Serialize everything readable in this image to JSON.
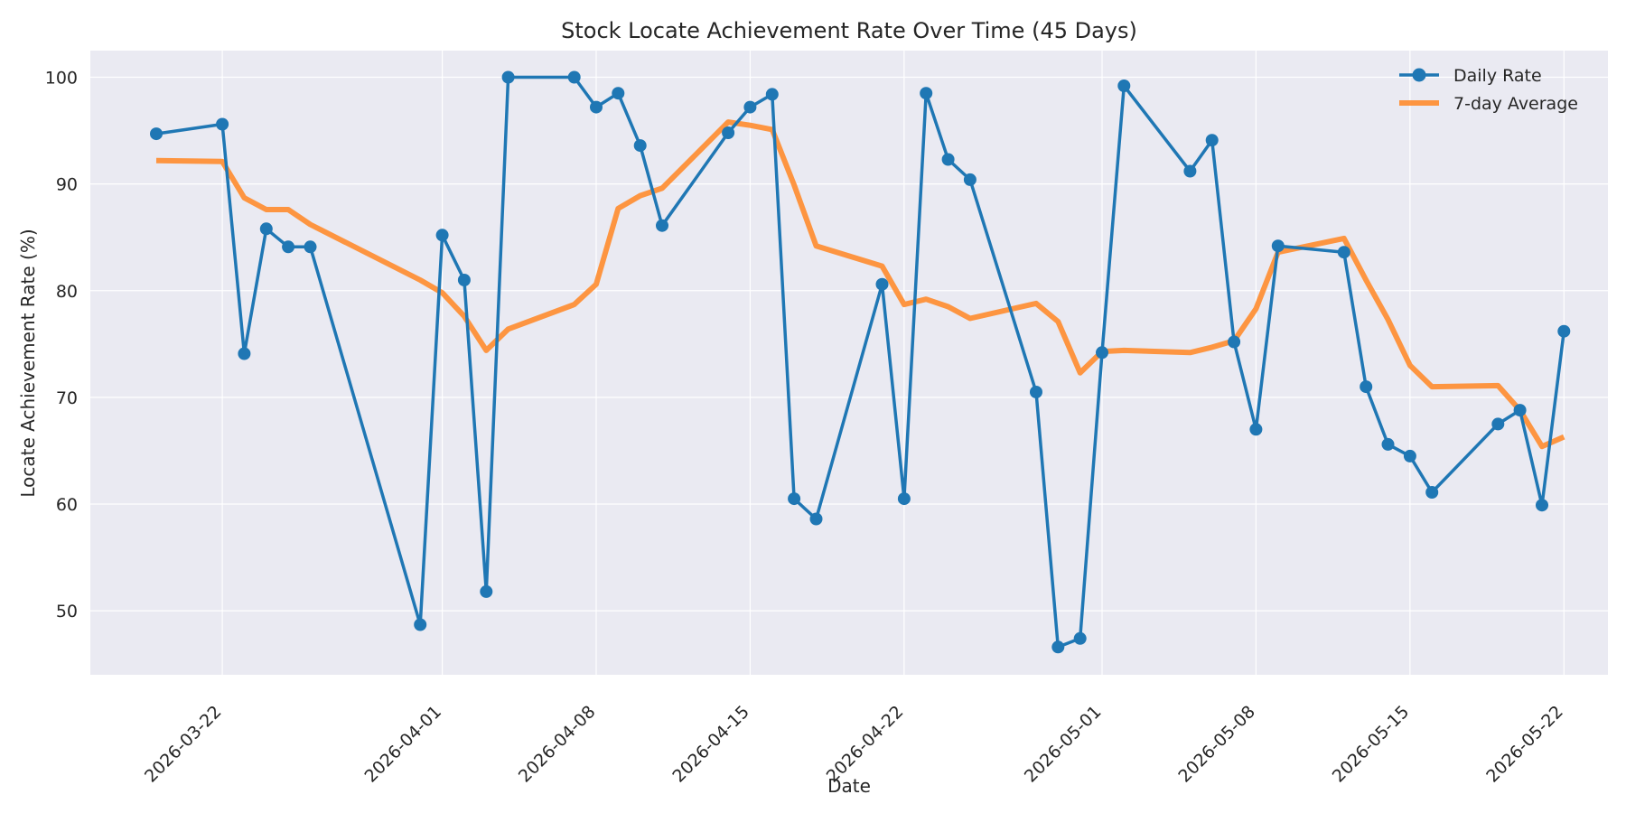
{
  "chart_data": {
    "type": "line",
    "title": "Stock Locate Achievement Rate Over Time (45 Days)",
    "xlabel": "Date",
    "ylabel": "Locate Achievement Rate (%)",
    "xlim": [
      "2026-03-16",
      "2026-05-24"
    ],
    "ylim": [
      44,
      102.5
    ],
    "x_ticks": [
      "2026-03-22",
      "2026-04-01",
      "2026-04-08",
      "2026-04-15",
      "2026-04-22",
      "2026-05-01",
      "2026-05-08",
      "2026-05-15",
      "2026-05-22"
    ],
    "y_ticks": [
      50,
      60,
      70,
      80,
      90,
      100
    ],
    "grid": true,
    "legend_position": "top-right",
    "colors": {
      "background": "#eaeaf2",
      "grid": "#ffffff",
      "daily": "#1f77b4",
      "average": "#ff8c2e"
    },
    "x": [
      "2026-03-19",
      "2026-03-22",
      "2026-03-23",
      "2026-03-24",
      "2026-03-25",
      "2026-03-26",
      "2026-03-31",
      "2026-04-01",
      "2026-04-02",
      "2026-04-03",
      "2026-04-04",
      "2026-04-07",
      "2026-04-08",
      "2026-04-09",
      "2026-04-10",
      "2026-04-11",
      "2026-04-14",
      "2026-04-15",
      "2026-04-16",
      "2026-04-17",
      "2026-04-18",
      "2026-04-21",
      "2026-04-22",
      "2026-04-23",
      "2026-04-24",
      "2026-04-25",
      "2026-04-28",
      "2026-04-29",
      "2026-04-30",
      "2026-05-01",
      "2026-05-02",
      "2026-05-05",
      "2026-05-06",
      "2026-05-07",
      "2026-05-08",
      "2026-05-09",
      "2026-05-12",
      "2026-05-13",
      "2026-05-14",
      "2026-05-15",
      "2026-05-16",
      "2026-05-19",
      "2026-05-20",
      "2026-05-21",
      "2026-05-22"
    ],
    "series": [
      {
        "name": "Daily Rate",
        "style": "line-marker",
        "values": [
          94.7,
          95.6,
          74.1,
          85.8,
          84.1,
          84.1,
          48.7,
          85.2,
          81.0,
          51.8,
          100.0,
          100.0,
          97.2,
          98.5,
          93.6,
          86.1,
          94.8,
          97.2,
          98.4,
          60.5,
          58.6,
          80.6,
          60.5,
          98.5,
          92.3,
          90.4,
          70.5,
          46.6,
          47.4,
          74.2,
          99.2,
          91.2,
          94.1,
          75.2,
          67.0,
          84.2,
          83.6,
          71.0,
          65.6,
          64.5,
          61.1,
          67.5,
          68.8,
          59.9,
          76.2
        ]
      },
      {
        "name": "7-day Average",
        "style": "thick-line",
        "values": [
          92.2,
          92.1,
          88.7,
          87.6,
          87.6,
          86.2,
          81.0,
          79.8,
          77.6,
          74.4,
          76.4,
          78.7,
          80.6,
          87.7,
          88.9,
          89.6,
          95.8,
          95.5,
          95.1,
          89.9,
          84.2,
          82.3,
          78.7,
          79.2,
          78.5,
          77.4,
          78.8,
          77.1,
          72.3,
          74.3,
          74.4,
          74.2,
          74.7,
          75.3,
          78.3,
          83.6,
          84.9,
          81.0,
          77.3,
          73.0,
          71.0,
          71.1,
          68.8,
          65.4,
          66.3
        ]
      }
    ]
  }
}
